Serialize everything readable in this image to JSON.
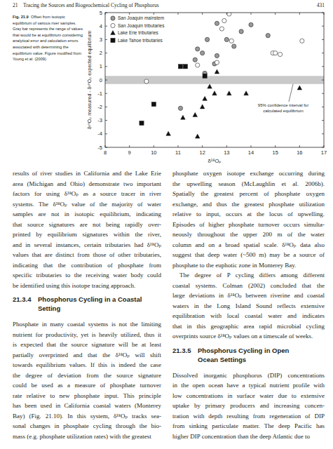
{
  "header": {
    "chapter": "21",
    "running_title": "Tracing the Sources and Biogeochemical Cycling of Phosphorus",
    "page_number": "431"
  },
  "figure": {
    "label": "Fig. 21.9",
    "caption": [
      "Offset from isotopic",
      "equilibrium of various river samples.",
      "Gray bar represents the range of values",
      "that would be at equilibrium considering",
      "analytical error and calculation errors",
      "associated with determining the",
      "equilibrium value. Figure modified from",
      "Young et al. (2009)"
    ]
  },
  "chart_data": {
    "type": "scatter",
    "x_label": "δ¹⁸Oₚ",
    "y_label": "δ¹⁸Oₚ measured - δ¹⁸Oₚ expected equilibrium",
    "xlim": [
      8,
      17
    ],
    "xticks": [
      8,
      9,
      10,
      11,
      12,
      13,
      14,
      15,
      16,
      17
    ],
    "ylim": [
      -5,
      5
    ],
    "yticks": [
      -5,
      -4,
      -3,
      -2,
      -1,
      0,
      1,
      2,
      3,
      4,
      5
    ],
    "legend": "upper left",
    "equilibrium_band": [
      -0.3,
      0.3
    ],
    "band_label": [
      "95% confidence interval for",
      "calculated equilibrium"
    ],
    "series": [
      {
        "name": "San Joaquin mainstem",
        "color": "#9a9a9a",
        "marker": "circle",
        "x": [
          12.2,
          12.6,
          13.0,
          12.0,
          11.7,
          12.6,
          13.3,
          14.7,
          14.0,
          13.6,
          12.5,
          11.1,
          12.1,
          11.8
        ],
        "values": [
          3.0,
          4.2,
          3.0,
          2.0,
          1.5,
          1.8,
          2.5,
          3.3,
          4.1,
          3.6,
          1.2,
          -2.1,
          0.5,
          2.3
        ]
      },
      {
        "name": "San Joaquin tributaries",
        "color": "#ffffff",
        "marker": "circle",
        "x": [
          13.1,
          9.7,
          12.8,
          13.2,
          14.9,
          15.0,
          15.2,
          16.1,
          12.6,
          11.8,
          12.9
        ],
        "values": [
          4.9,
          -0.1,
          3.8,
          2.9,
          2.0,
          2.0,
          1.9,
          2.9,
          1.3,
          1.1,
          4.4
        ]
      },
      {
        "name": "Lake Erie tributaries",
        "color": "#111111",
        "marker": "triangle",
        "x": [
          10.6,
          11.2,
          11.7,
          11.8,
          12.0,
          12.1,
          12.5,
          13.1,
          13.8,
          12.3,
          16.0,
          12.6
        ],
        "values": [
          -4.0,
          -2.8,
          -2.6,
          -4.2,
          -2.0,
          -1.4,
          -1.0,
          -1.0,
          -1.0,
          -0.5,
          -0.6,
          0.6
        ]
      },
      {
        "name": "Lake Tahoe tributaries",
        "color": "#111111",
        "marker": "square",
        "x": [
          9.5,
          10.0,
          11.1,
          11.3,
          12.1
        ],
        "values": [
          -3.2,
          -1.8,
          1.0,
          1.0,
          0.3
        ]
      }
    ]
  },
  "body": {
    "left": [
      {
        "lines": [
          "results of river studies in California and the Lake Erie",
          "area (Michigan and Ohio) demonstrate two important",
          "factors for using δ¹⁸Oₚ as a source tracer in river",
          "systems. The δ¹⁸Oₚ value of the majority of water",
          "samples are not in isotopic equilibrium, indicating",
          "that source signatures are not being rapidly over-",
          "printed by equilibrium signatures within the river,",
          "and in several instances, certain tributaries had δ¹⁸Oₚ",
          "values that are distinct from those of other tributaries,",
          "indicating that the contribution of phosphate from",
          "specific tributaries to the receiving water body could",
          "be identified using this isotope tracing approach."
        ]
      },
      {
        "number": "21.3.4",
        "lines": [
          "Phosphorus Cycling in a Coastal",
          "Setting"
        ]
      },
      {
        "lines": [
          "Phosphate in many coastal systems is not the limiting",
          "nutrient for productivity, yet is heavily utilized, thus it",
          "is expected that the source signature will be at least",
          "partially overprinted and that the δ¹⁸Oₚ will shift",
          "towards equilibrium values. If this is indeed the case",
          "the degree of deviation from the source signature",
          "could be used as a measure of phosphate turnover",
          "rate relative to new phosphate input. This principle",
          "has been used in California coastal waters (Monterey",
          "Bay) (Fig. 21.10). In this system, δ¹⁸Oₚ tracks sea-",
          "sonal changes in phosphate cycling through the bio-",
          "mass (e.g. phosphate utilization rates) with the greatest"
        ]
      }
    ],
    "right": [
      {
        "lines": [
          "phosphate oxygen isotope exchange occurring during",
          "the upwelling season (McLaughlin et al. 2006b).",
          "Spatially the greatest percent of phosphate oxygen",
          "exchange, and thus the greatest phosphate utilization",
          "relative to input, occurs at the locus of upwelling.",
          "Episodes of higher phosphate turnover occurs simulta-",
          "neously throughout the upper 200 m of the water",
          "column and on a broad spatial scale. δ¹⁸Oₚ data also",
          "suggest that deep water (~500 m) may be a source of",
          "phosphate to the euphotic zone in Monterey Bay."
        ]
      },
      {
        "lines": [
          "The degree of P cycling differs among different",
          "coastal systems. Colman (2002) concluded that the",
          "large deviations in δ¹⁸Oₚ between riverine and coastal",
          "waters in the Long Island Sound reflects extensive",
          "equilibration with local coastal water and indicates",
          "that in this geographic area rapid microbial cycling",
          "overprints source δ¹⁸Oₚ values on a timescale of weeks."
        ]
      },
      {
        "number": "21.3.5",
        "lines": [
          "Phosphorus Cycling in Open",
          "Ocean Settings"
        ]
      },
      {
        "lines": [
          "Dissolved inorganic phosphorus (DIP) concentrations",
          "in the open ocean have a typical nutrient profile with",
          "low concentrations in surface water due to extensive",
          "uptake by primary producers and increasing concen-",
          "tration with depth resulting from regeneration of DIP",
          "from sinking particulate matter. The deep Pacific has",
          "higher DIP concentration than the deep Atlantic due to"
        ]
      }
    ]
  }
}
